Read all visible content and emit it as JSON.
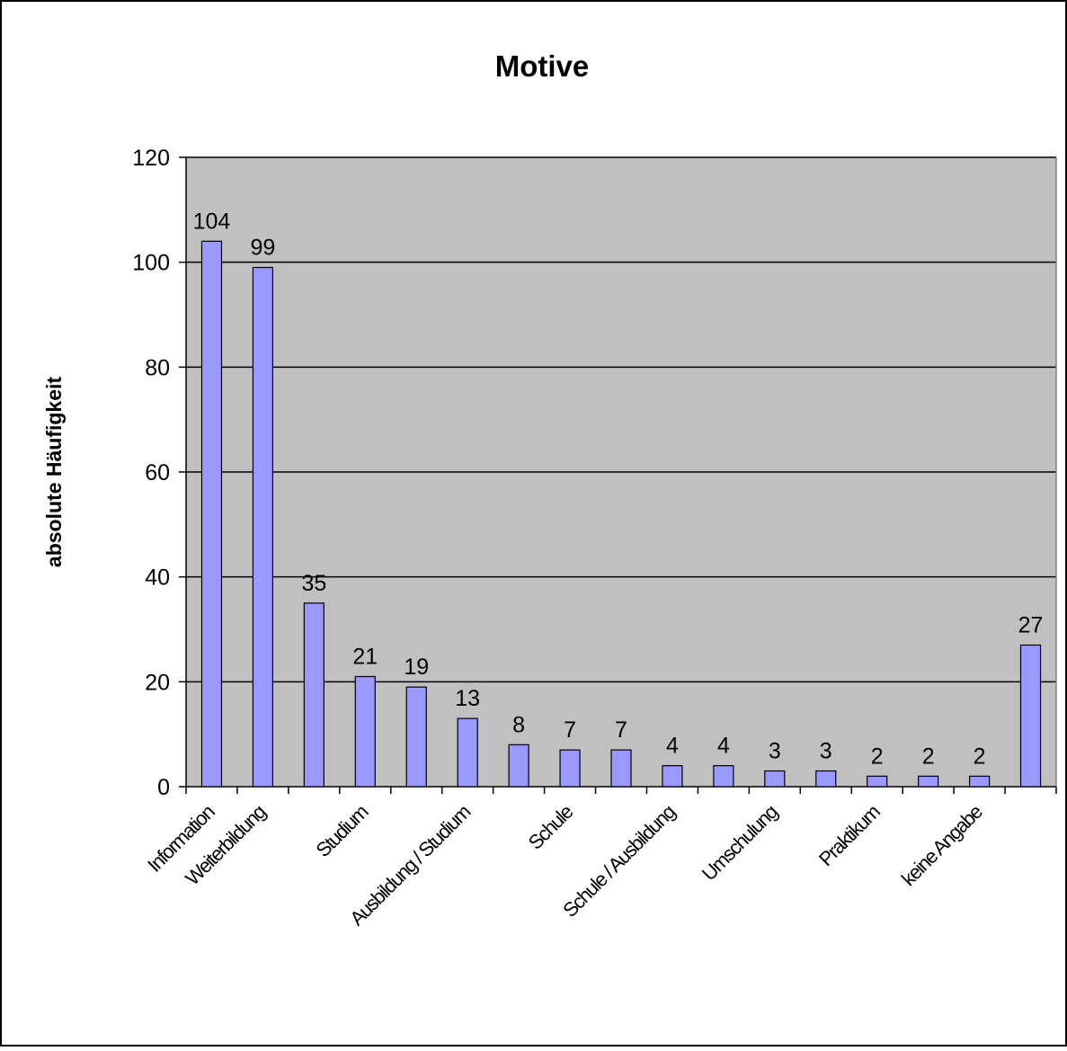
{
  "chart_data": {
    "type": "bar",
    "title": "Motive",
    "xlabel": "",
    "ylabel": "absolute Häufigkeit",
    "ylim": [
      0,
      120
    ],
    "yticks": [
      0,
      20,
      40,
      60,
      80,
      100,
      120
    ],
    "grid": true,
    "legend": "none",
    "categories": [
      "Information",
      "Weiterbildung",
      "",
      "Studium",
      "",
      "Ausbildung / Studium",
      "",
      "Schule",
      "",
      "Schule / Ausbildung",
      "",
      "Umschulung",
      "",
      "Praktikum",
      "",
      "keine Angabe",
      ""
    ],
    "values": [
      104,
      99,
      35,
      21,
      19,
      13,
      8,
      7,
      7,
      4,
      4,
      3,
      3,
      2,
      2,
      2,
      27
    ],
    "colors": {
      "bar": "#9999ff",
      "plot_background": "#c0c0c0",
      "page_background": "#ffffff",
      "grid": "#000000"
    }
  }
}
